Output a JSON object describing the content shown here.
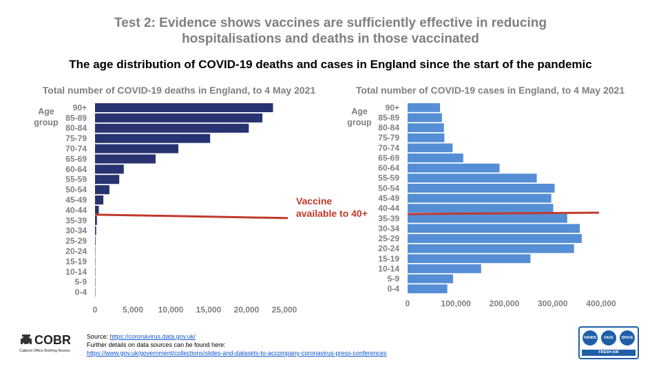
{
  "header": {
    "title_line1": "Test 2: Evidence shows vaccines are sufficiently effective in reducing",
    "title_line2": "hospitalisations and deaths in those vaccinated",
    "subtitle": "The age distribution of COVID-19 deaths and cases in England since the start of the pandemic"
  },
  "annotation": {
    "line1": "Vaccine",
    "line2": "available to 40+",
    "color": "#c0392b"
  },
  "chart_data": [
    {
      "type": "bar",
      "orientation": "horizontal",
      "title": "Total number of COVID-19 deaths in England, to 4 May 2021",
      "ylabel_line1": "Age",
      "ylabel_line2": "group",
      "categories": [
        "90+",
        "85-89",
        "80-84",
        "75-79",
        "70-74",
        "65-69",
        "60-64",
        "55-59",
        "50-54",
        "45-49",
        "40-44",
        "35-39",
        "30-34",
        "25-29",
        "20-24",
        "15-19",
        "10-14",
        "5-9",
        "0-4"
      ],
      "values": [
        23500,
        22100,
        20300,
        15200,
        11000,
        8000,
        3800,
        3200,
        1900,
        1100,
        500,
        250,
        150,
        70,
        30,
        15,
        8,
        5,
        3
      ],
      "xlim": [
        0,
        25000
      ],
      "xticks": [
        0,
        5000,
        10000,
        15000,
        20000,
        25000
      ],
      "xtick_labels": [
        "0",
        "5,000",
        "10,000",
        "15,000",
        "20,000",
        "25,000"
      ],
      "color": "#283371"
    },
    {
      "type": "bar",
      "orientation": "horizontal",
      "title": "Total number of COVID-19 cases in England, to 4 May 2021",
      "ylabel_line1": "Age",
      "ylabel_line2": "group",
      "categories": [
        "90+",
        "85-89",
        "80-84",
        "75-79",
        "70-74",
        "65-69",
        "60-64",
        "55-59",
        "50-54",
        "45-49",
        "40-44",
        "35-39",
        "30-34",
        "25-29",
        "20-24",
        "15-19",
        "10-14",
        "5-9",
        "0-4"
      ],
      "values": [
        67000,
        71000,
        75000,
        76000,
        93000,
        115000,
        190000,
        267000,
        304000,
        297000,
        301000,
        330000,
        356000,
        360000,
        344000,
        254000,
        152000,
        94000,
        82000
      ],
      "xlim": [
        0,
        400000
      ],
      "xticks": [
        0,
        100000,
        200000,
        300000,
        400000
      ],
      "xtick_labels": [
        "0",
        "100,000",
        "200,000",
        "300,000",
        "400,000"
      ],
      "color": "#558ed5"
    }
  ],
  "footer": {
    "source_prefix": "Source: ",
    "source_link": "https://coronavirus.data.gov.uk/",
    "details_text": "Further details on data sources can be found here:",
    "details_link": "https://www.gov.uk/government/collections/slides-and-datasets-to-accompany-coronavirus-press-conferences",
    "logo_text": "COBR",
    "logo_sub": "Cabinet Office Briefing Rooms",
    "hfs_hands": "HANDS",
    "hfs_face": "FACE",
    "hfs_space": "SPACE",
    "hfs_bar": "FRESH AIR"
  }
}
